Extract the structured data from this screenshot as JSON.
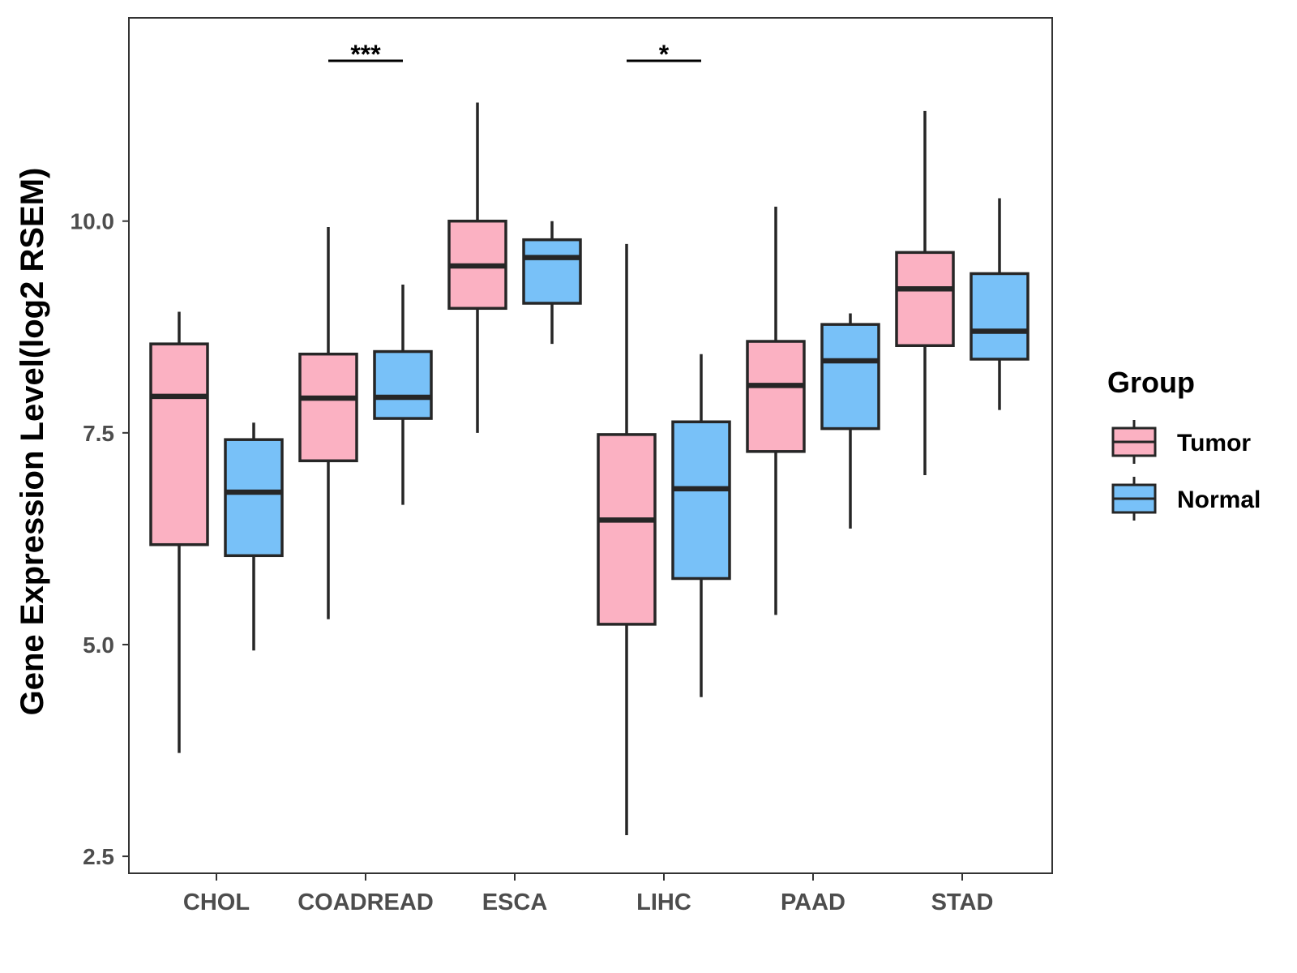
{
  "chart_data": {
    "type": "boxplot",
    "title": "",
    "xlabel": "",
    "ylabel": "Gene Expression Level(log2 RSEM)",
    "ylim": [
      2.3,
      12.4
    ],
    "yticks": [
      2.5,
      5.0,
      7.5,
      10.0
    ],
    "ytick_labels": [
      "2.5",
      "5.0",
      "7.5",
      "10.0"
    ],
    "grid": false,
    "categories": [
      "CHOL",
      "COADREAD",
      "ESCA",
      "LIHC",
      "PAAD",
      "STAD"
    ],
    "legend": {
      "title": "Group",
      "position": "right",
      "items": [
        {
          "label": "Tumor",
          "color": "#FBB1C2"
        },
        {
          "label": "Normal",
          "color": "#78C1F8"
        }
      ]
    },
    "series": [
      {
        "name": "Tumor",
        "color": "#FBB1C2",
        "boxes": [
          {
            "category": "CHOL",
            "whisker_low": 3.72,
            "q1": 6.18,
            "median": 7.93,
            "q3": 8.55,
            "whisker_high": 8.93
          },
          {
            "category": "COADREAD",
            "whisker_low": 5.3,
            "q1": 7.17,
            "median": 7.91,
            "q3": 8.43,
            "whisker_high": 9.93
          },
          {
            "category": "ESCA",
            "whisker_low": 7.5,
            "q1": 8.97,
            "median": 9.47,
            "q3": 10.0,
            "whisker_high": 11.4
          },
          {
            "category": "LIHC",
            "whisker_low": 2.75,
            "q1": 5.24,
            "median": 6.47,
            "q3": 7.48,
            "whisker_high": 9.73
          },
          {
            "category": "PAAD",
            "whisker_low": 5.35,
            "q1": 7.28,
            "median": 8.06,
            "q3": 8.58,
            "whisker_high": 10.17
          },
          {
            "category": "STAD",
            "whisker_low": 7.0,
            "q1": 8.53,
            "median": 9.2,
            "q3": 9.63,
            "whisker_high": 11.3
          }
        ]
      },
      {
        "name": "Normal",
        "color": "#78C1F8",
        "boxes": [
          {
            "category": "CHOL",
            "whisker_low": 4.93,
            "q1": 6.05,
            "median": 6.8,
            "q3": 7.42,
            "whisker_high": 7.62
          },
          {
            "category": "COADREAD",
            "whisker_low": 6.65,
            "q1": 7.67,
            "median": 7.92,
            "q3": 8.46,
            "whisker_high": 9.25
          },
          {
            "category": "ESCA",
            "whisker_low": 8.55,
            "q1": 9.03,
            "median": 9.57,
            "q3": 9.78,
            "whisker_high": 10.0
          },
          {
            "category": "LIHC",
            "whisker_low": 4.38,
            "q1": 5.78,
            "median": 6.84,
            "q3": 7.63,
            "whisker_high": 8.43
          },
          {
            "category": "PAAD",
            "whisker_low": 6.37,
            "q1": 7.55,
            "median": 8.35,
            "q3": 8.78,
            "whisker_high": 8.91
          },
          {
            "category": "STAD",
            "whisker_low": 7.77,
            "q1": 8.37,
            "median": 8.7,
            "q3": 9.38,
            "whisker_high": 10.27
          }
        ]
      }
    ],
    "annotations": [
      {
        "category": "COADREAD",
        "label": "***"
      },
      {
        "category": "LIHC",
        "label": "*"
      }
    ]
  }
}
